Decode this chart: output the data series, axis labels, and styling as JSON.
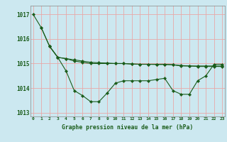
{
  "title": "Graphe pression niveau de la mer (hPa)",
  "bg_color": "#cce8f0",
  "grid_color": "#e8a8a8",
  "line_color": "#1a5c1a",
  "xlim": [
    -0.3,
    23.3
  ],
  "ylim": [
    1012.85,
    1017.35
  ],
  "yticks": [
    1013,
    1014,
    1015,
    1016,
    1017
  ],
  "xticks": [
    0,
    1,
    2,
    3,
    4,
    5,
    6,
    7,
    8,
    9,
    10,
    11,
    12,
    13,
    14,
    15,
    16,
    17,
    18,
    19,
    20,
    21,
    22,
    23
  ],
  "line1_x": [
    0,
    1,
    2,
    3,
    4,
    5,
    6,
    7,
    8,
    9,
    10,
    11,
    12,
    13,
    14,
    15,
    16,
    17,
    18,
    19,
    20,
    21,
    22,
    23
  ],
  "line1_y": [
    1017.0,
    1016.45,
    1015.7,
    1015.25,
    1014.7,
    1013.9,
    1013.7,
    1013.45,
    1013.45,
    1013.8,
    1014.2,
    1014.3,
    1014.3,
    1014.3,
    1014.3,
    1014.35,
    1014.4,
    1013.9,
    1013.75,
    1013.75,
    1014.3,
    1014.5,
    1014.97,
    1014.97
  ],
  "line2_x": [
    1,
    2,
    3,
    4,
    5,
    6,
    7,
    8,
    9,
    10,
    11,
    12,
    13,
    14,
    15,
    16,
    17,
    18,
    19,
    20,
    21,
    22,
    23
  ],
  "line2_y": [
    1016.45,
    1015.7,
    1015.25,
    1015.2,
    1015.1,
    1015.05,
    1015.0,
    1015.0,
    1015.0,
    1015.0,
    1015.0,
    1014.98,
    1014.97,
    1014.97,
    1014.97,
    1014.97,
    1014.95,
    1014.9,
    1014.9,
    1014.9,
    1014.9,
    1014.9,
    1014.9
  ],
  "line3_x": [
    2,
    3,
    4,
    5,
    6,
    7,
    8,
    9,
    10,
    11,
    12,
    13,
    14,
    15,
    16,
    17,
    18,
    19,
    20,
    21,
    22,
    23
  ],
  "line3_y": [
    1015.7,
    1015.25,
    1015.2,
    1015.15,
    1015.1,
    1015.05,
    1015.03,
    1015.02,
    1015.0,
    1015.0,
    1014.98,
    1014.97,
    1014.97,
    1014.96,
    1014.96,
    1014.95,
    1014.92,
    1014.9,
    1014.88,
    1014.88,
    1014.88,
    1014.88
  ]
}
